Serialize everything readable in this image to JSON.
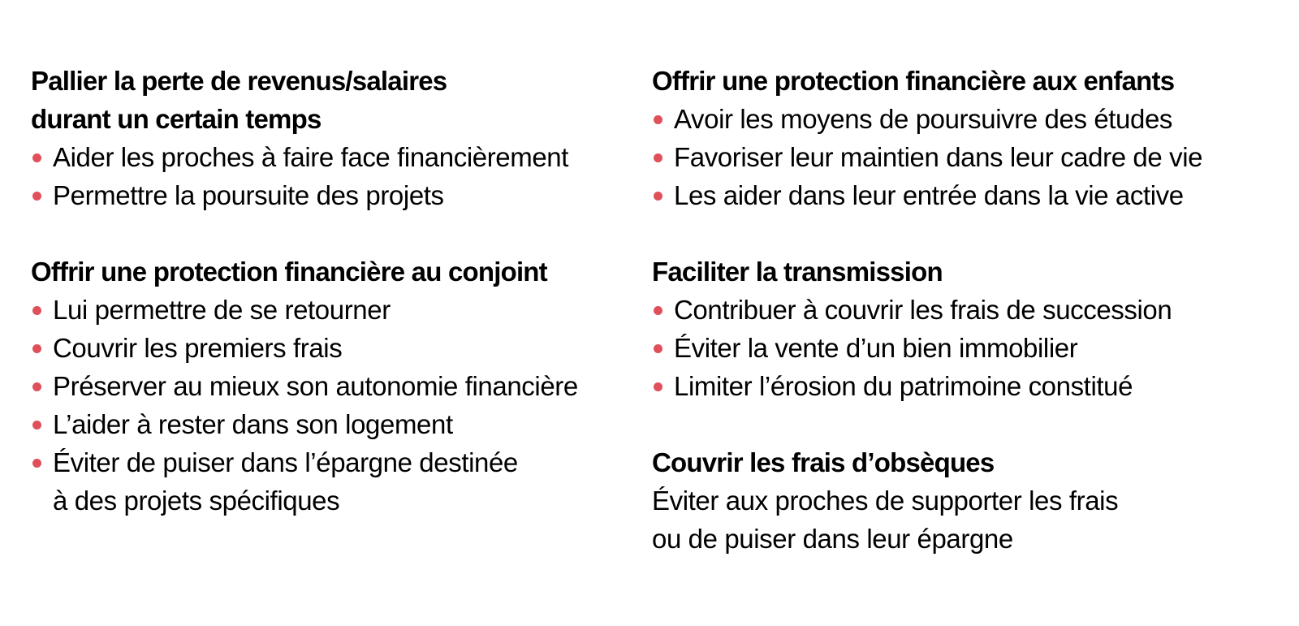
{
  "accent_color": "#e0505a",
  "text_color": "#000000",
  "background_color": "#ffffff",
  "columns": [
    {
      "sections": [
        {
          "heading_lines": [
            "Pallier la perte de revenus/salaires",
            "durant un certain temps"
          ],
          "bullets": [
            [
              "Aider les proches à faire face financièrement"
            ],
            [
              "Permettre la poursuite des projets"
            ]
          ]
        },
        {
          "heading_lines": [
            "Offrir une protection financière au conjoint"
          ],
          "bullets": [
            [
              "Lui permettre de se retourner"
            ],
            [
              "Couvrir les premiers frais"
            ],
            [
              "Préserver au mieux son autonomie financière"
            ],
            [
              "L’aider à rester dans son logement"
            ],
            [
              "Éviter de puiser dans l’épargne destinée",
              "à des projets spécifiques"
            ]
          ]
        }
      ]
    },
    {
      "sections": [
        {
          "heading_lines": [
            "Offrir une protection financière aux enfants"
          ],
          "bullets": [
            [
              "Avoir les moyens de poursuivre des études"
            ],
            [
              "Favoriser leur maintien dans leur cadre de vie"
            ],
            [
              "Les aider dans leur entrée dans la vie active"
            ]
          ]
        },
        {
          "heading_lines": [
            "Faciliter la transmission"
          ],
          "bullets": [
            [
              "Contribuer à couvrir les frais de succession"
            ],
            [
              "Éviter la vente d’un bien immobilier"
            ],
            [
              "Limiter l’érosion du patrimoine constitué"
            ]
          ]
        },
        {
          "heading_lines": [
            "Couvrir les frais d’obsèques"
          ],
          "text_lines": [
            "Éviter aux proches de supporter les frais",
            "ou de puiser dans leur épargne"
          ]
        }
      ]
    }
  ]
}
